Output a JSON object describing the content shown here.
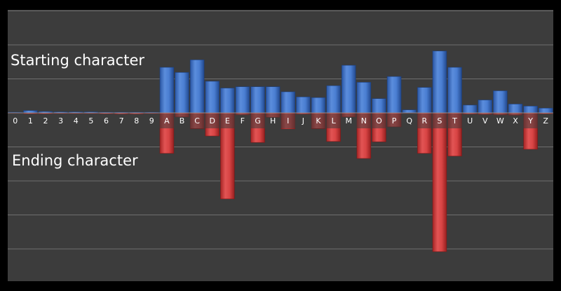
{
  "chart_data": {
    "type": "bar",
    "categories": [
      "0",
      "1",
      "2",
      "3",
      "4",
      "5",
      "6",
      "7",
      "8",
      "9",
      "A",
      "B",
      "C",
      "D",
      "E",
      "F",
      "G",
      "H",
      "I",
      "J",
      "K",
      "L",
      "M",
      "N",
      "O",
      "P",
      "Q",
      "R",
      "S",
      "T",
      "U",
      "V",
      "W",
      "X",
      "Y",
      "Z"
    ],
    "series": [
      {
        "name": "Starting character",
        "color": "#3f74c9",
        "values": [
          0.1,
          0.7,
          0.4,
          0.3,
          0.3,
          0.3,
          0.2,
          0.1,
          0.1,
          0.1,
          13.4,
          11.9,
          15.6,
          9.3,
          7.3,
          7.7,
          7.7,
          7.7,
          6.2,
          4.7,
          4.5,
          8.0,
          14.0,
          9.0,
          4.2,
          10.7,
          0.9,
          7.5,
          18.2,
          13.4,
          2.3,
          3.8,
          6.5,
          2.6,
          2.0,
          1.4
        ]
      },
      {
        "name": "Ending character",
        "color": "#d63b3b",
        "values": [
          0.1,
          0.3,
          0.3,
          0.2,
          0.2,
          0.2,
          0.3,
          0.4,
          0.4,
          0.2,
          11.9,
          1.2,
          4.6,
          6.8,
          25.3,
          0.6,
          8.7,
          1.3,
          4.7,
          0.4,
          4.6,
          8.4,
          1.2,
          13.4,
          8.5,
          4.1,
          0.1,
          11.9,
          40.8,
          12.7,
          0.4,
          0.5,
          0.6,
          0.7,
          10.7,
          0.3
        ]
      }
    ],
    "ylim": [
      -50,
      50
    ],
    "gridlines": [
      -40,
      -30,
      -20,
      -10,
      10,
      20,
      30,
      40
    ],
    "grid": true,
    "colors": {
      "background": "#3c3c3c",
      "outer": "#000000",
      "grid": "#6e6e6e",
      "label_band": "#3c3c3c",
      "axis_label": "#ffffff",
      "annotation": "#ffffff"
    }
  },
  "annotations": {
    "top": "Starting character",
    "bottom": "Ending character"
  }
}
